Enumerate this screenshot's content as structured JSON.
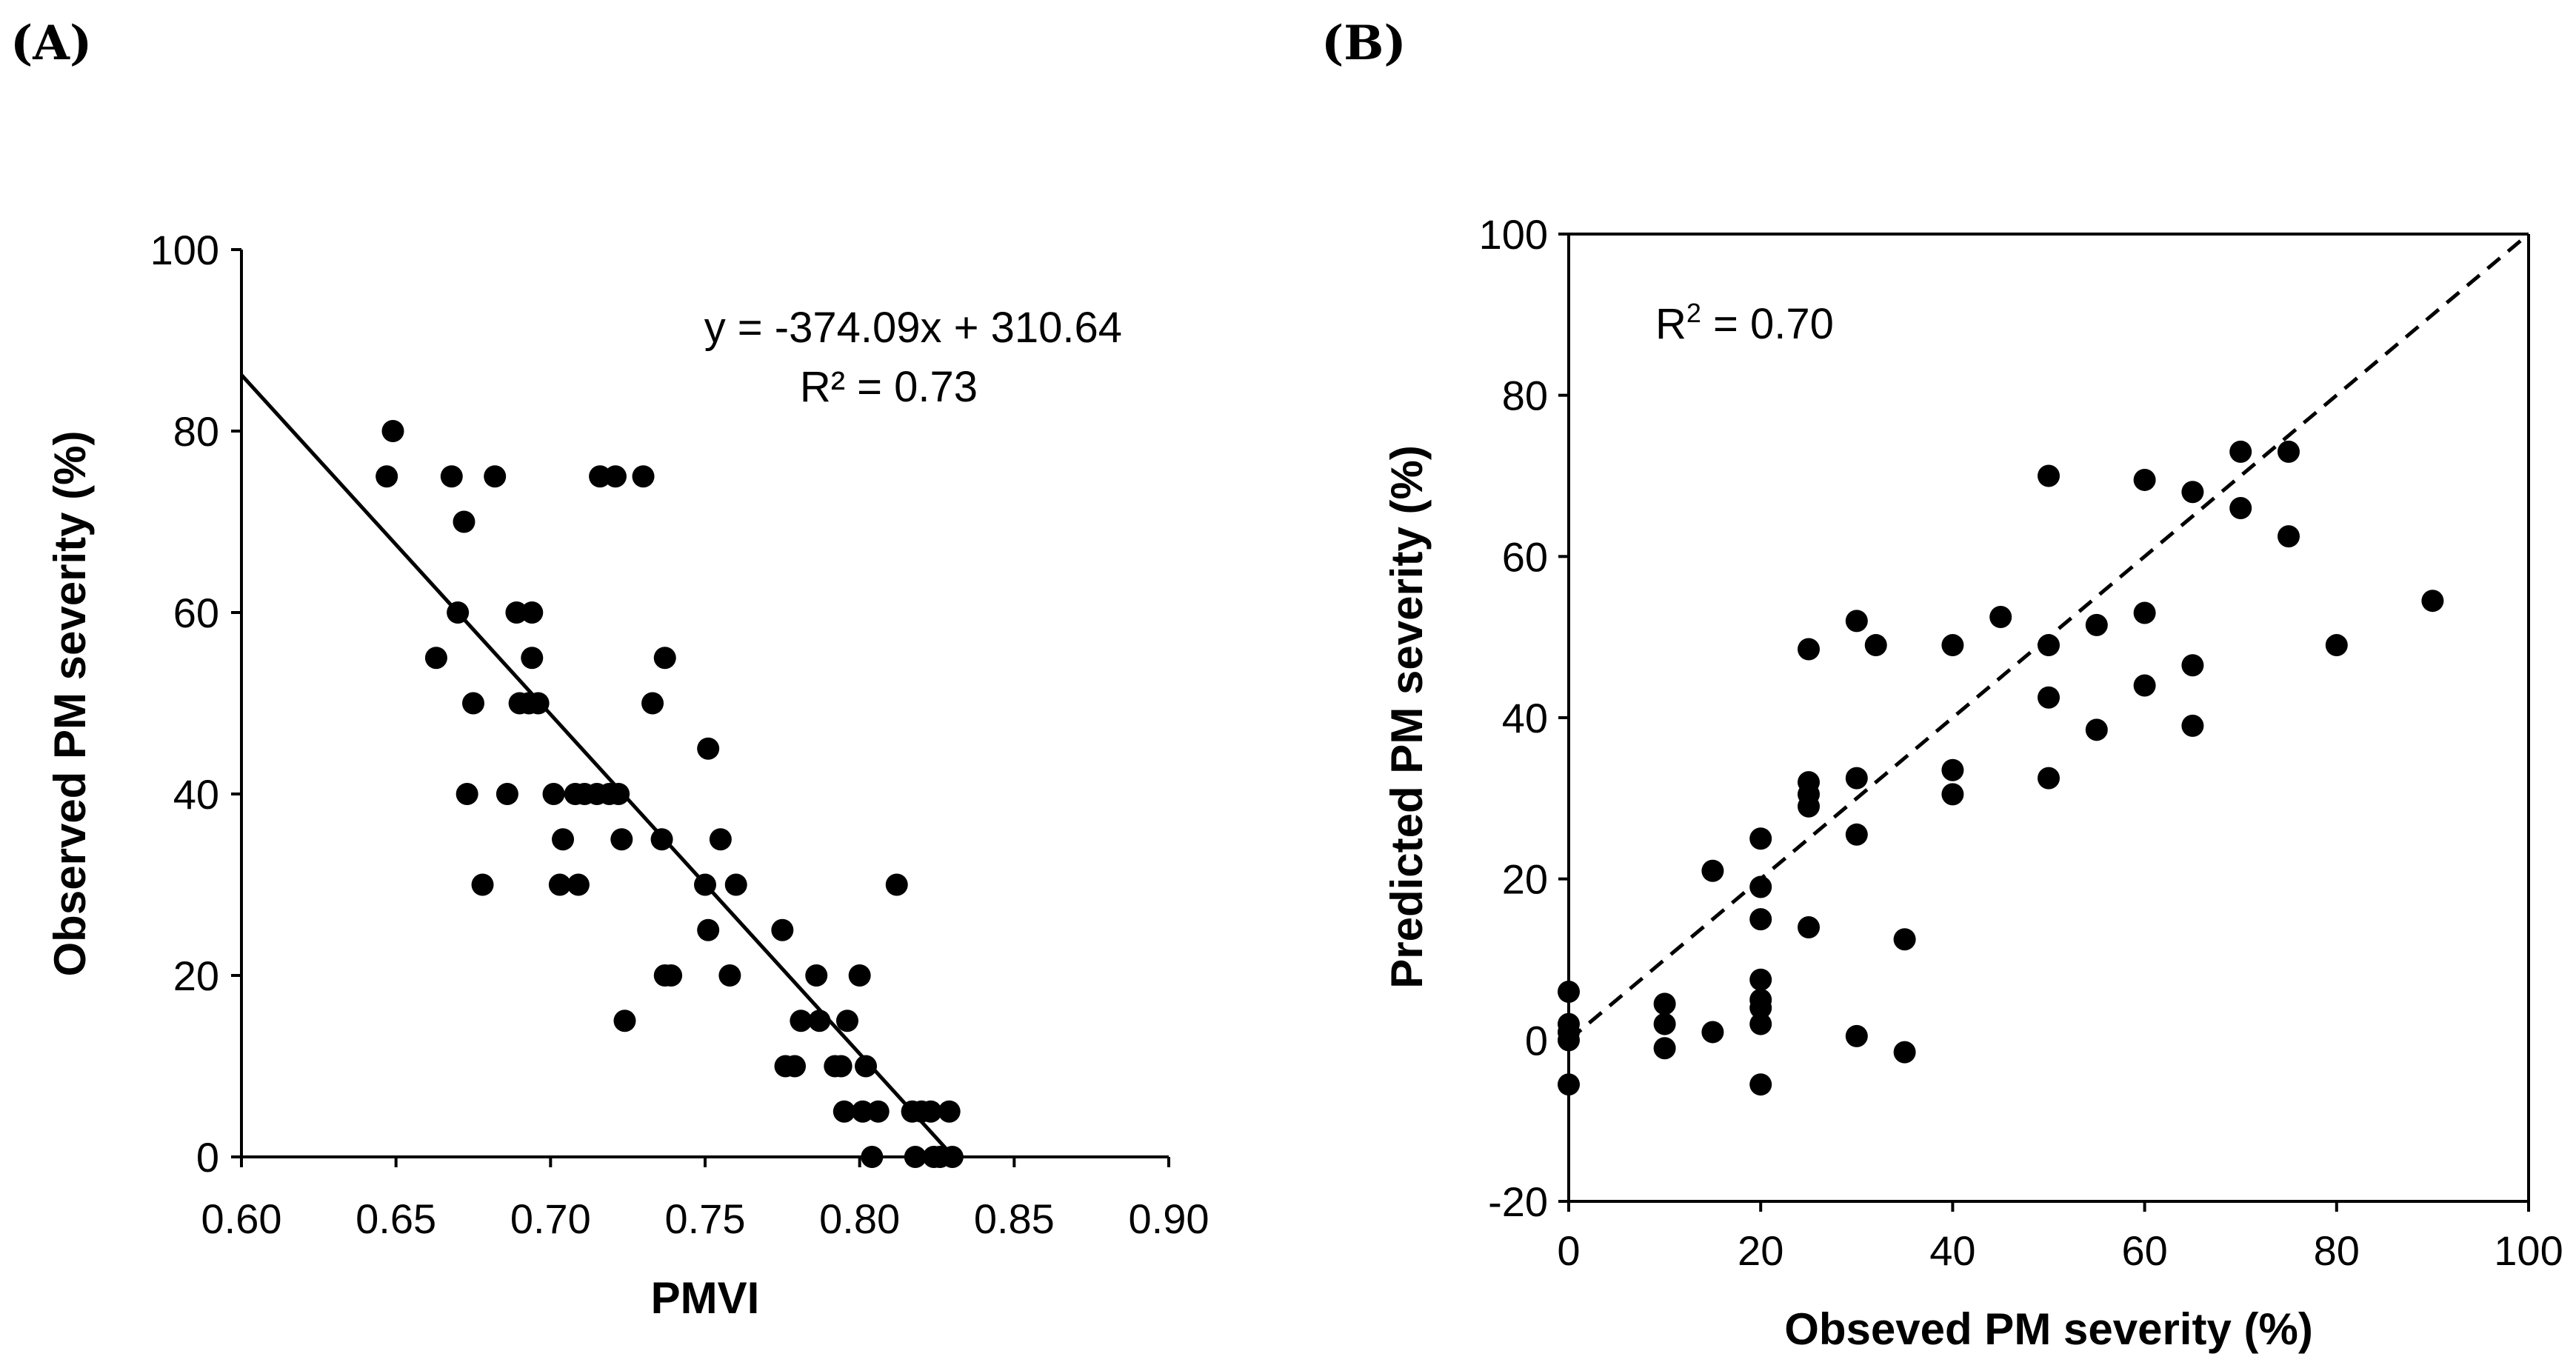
{
  "chart_data": [
    {
      "panel": "(A)",
      "type": "scatter",
      "xlabel": "PMVI",
      "ylabel": "Observed PM severity (%)",
      "xlim": [
        0.6,
        0.9
      ],
      "ylim": [
        0,
        100
      ],
      "xticks": [
        0.6,
        0.65,
        0.7,
        0.75,
        0.8,
        0.85,
        0.9
      ],
      "xtick_labels": [
        "0.60",
        "0.65",
        "0.70",
        "0.75",
        "0.80",
        "0.85",
        "0.90"
      ],
      "yticks": [
        0,
        20,
        40,
        60,
        80,
        100
      ],
      "ytick_labels": [
        "0",
        "20",
        "40",
        "60",
        "80",
        "100"
      ],
      "equation": "y = -374.09x + 310.64",
      "r2_label": "R² = 0.73",
      "trendline": {
        "slope": -374.09,
        "intercept": 310.64,
        "style": "solid"
      },
      "points": [
        [
          0.647,
          75
        ],
        [
          0.649,
          80
        ],
        [
          0.663,
          55
        ],
        [
          0.668,
          75
        ],
        [
          0.67,
          60
        ],
        [
          0.672,
          70
        ],
        [
          0.673,
          40
        ],
        [
          0.675,
          50
        ],
        [
          0.678,
          30
        ],
        [
          0.682,
          75
        ],
        [
          0.686,
          40
        ],
        [
          0.689,
          60
        ],
        [
          0.69,
          50
        ],
        [
          0.693,
          50
        ],
        [
          0.694,
          60
        ],
        [
          0.694,
          55
        ],
        [
          0.696,
          50
        ],
        [
          0.701,
          40
        ],
        [
          0.703,
          30
        ],
        [
          0.704,
          35
        ],
        [
          0.708,
          40
        ],
        [
          0.709,
          30
        ],
        [
          0.711,
          40
        ],
        [
          0.715,
          40
        ],
        [
          0.716,
          75
        ],
        [
          0.719,
          40
        ],
        [
          0.721,
          75
        ],
        [
          0.722,
          40
        ],
        [
          0.723,
          35
        ],
        [
          0.724,
          15
        ],
        [
          0.73,
          75
        ],
        [
          0.733,
          50
        ],
        [
          0.736,
          35
        ],
        [
          0.737,
          20
        ],
        [
          0.737,
          55
        ],
        [
          0.739,
          20
        ],
        [
          0.75,
          30
        ],
        [
          0.751,
          25
        ],
        [
          0.751,
          45
        ],
        [
          0.755,
          35
        ],
        [
          0.758,
          20
        ],
        [
          0.76,
          30
        ],
        [
          0.775,
          25
        ],
        [
          0.776,
          10
        ],
        [
          0.779,
          10
        ],
        [
          0.781,
          15
        ],
        [
          0.786,
          20
        ],
        [
          0.787,
          15
        ],
        [
          0.792,
          10
        ],
        [
          0.794,
          10
        ],
        [
          0.795,
          5
        ],
        [
          0.796,
          15
        ],
        [
          0.8,
          20
        ],
        [
          0.801,
          5
        ],
        [
          0.802,
          10
        ],
        [
          0.804,
          0
        ],
        [
          0.806,
          5
        ],
        [
          0.812,
          30
        ],
        [
          0.817,
          5
        ],
        [
          0.818,
          0
        ],
        [
          0.82,
          5
        ],
        [
          0.823,
          5
        ],
        [
          0.824,
          0
        ],
        [
          0.826,
          0
        ],
        [
          0.829,
          5
        ],
        [
          0.83,
          0
        ]
      ]
    },
    {
      "panel": "(B)",
      "type": "scatter",
      "xlabel": "Obseved PM severity (%)",
      "ylabel": "Predicted PM severity (%)",
      "xlim": [
        0,
        100
      ],
      "ylim": [
        -20,
        100
      ],
      "xticks": [
        0,
        20,
        40,
        60,
        80,
        100
      ],
      "xtick_labels": [
        "0",
        "20",
        "40",
        "60",
        "80",
        "100"
      ],
      "yticks": [
        -20,
        0,
        20,
        40,
        60,
        80,
        100
      ],
      "ytick_labels": [
        "-20",
        "0",
        "20",
        "40",
        "60",
        "80",
        "100"
      ],
      "r2_label_base": "R",
      "r2_label_sup": "2",
      "r2_label_rest": " = 0.70",
      "reference_line": {
        "from": [
          0,
          0
        ],
        "to": [
          100,
          100
        ],
        "style": "dashed"
      },
      "points": [
        [
          0,
          6
        ],
        [
          0,
          2
        ],
        [
          0,
          1
        ],
        [
          0,
          0
        ],
        [
          0,
          -5.5
        ],
        [
          10,
          4.5
        ],
        [
          10,
          2
        ],
        [
          10,
          -1
        ],
        [
          15,
          21
        ],
        [
          15,
          1
        ],
        [
          20,
          25
        ],
        [
          20,
          19
        ],
        [
          20,
          15
        ],
        [
          20,
          7.5
        ],
        [
          20,
          5
        ],
        [
          20,
          4
        ],
        [
          20,
          2
        ],
        [
          20,
          -5.5
        ],
        [
          25,
          48.5
        ],
        [
          25,
          32
        ],
        [
          25,
          30.5
        ],
        [
          25,
          29
        ],
        [
          25,
          14
        ],
        [
          30,
          52
        ],
        [
          30,
          32.5
        ],
        [
          30,
          25.5
        ],
        [
          30,
          0.5
        ],
        [
          32,
          49
        ],
        [
          35,
          12.5
        ],
        [
          35,
          -1.5
        ],
        [
          40,
          49
        ],
        [
          40,
          33.5
        ],
        [
          40,
          30.5
        ],
        [
          45,
          52.5
        ],
        [
          50,
          70
        ],
        [
          50,
          49
        ],
        [
          50,
          42.5
        ],
        [
          50,
          32.5
        ],
        [
          55,
          51.5
        ],
        [
          55,
          38.5
        ],
        [
          60,
          69.5
        ],
        [
          60,
          53
        ],
        [
          60,
          44
        ],
        [
          65,
          68
        ],
        [
          65,
          46.5
        ],
        [
          65,
          39
        ],
        [
          70,
          73
        ],
        [
          70,
          66
        ],
        [
          75,
          73
        ],
        [
          75,
          62.5
        ],
        [
          80,
          49
        ],
        [
          90,
          54.5
        ]
      ]
    }
  ]
}
